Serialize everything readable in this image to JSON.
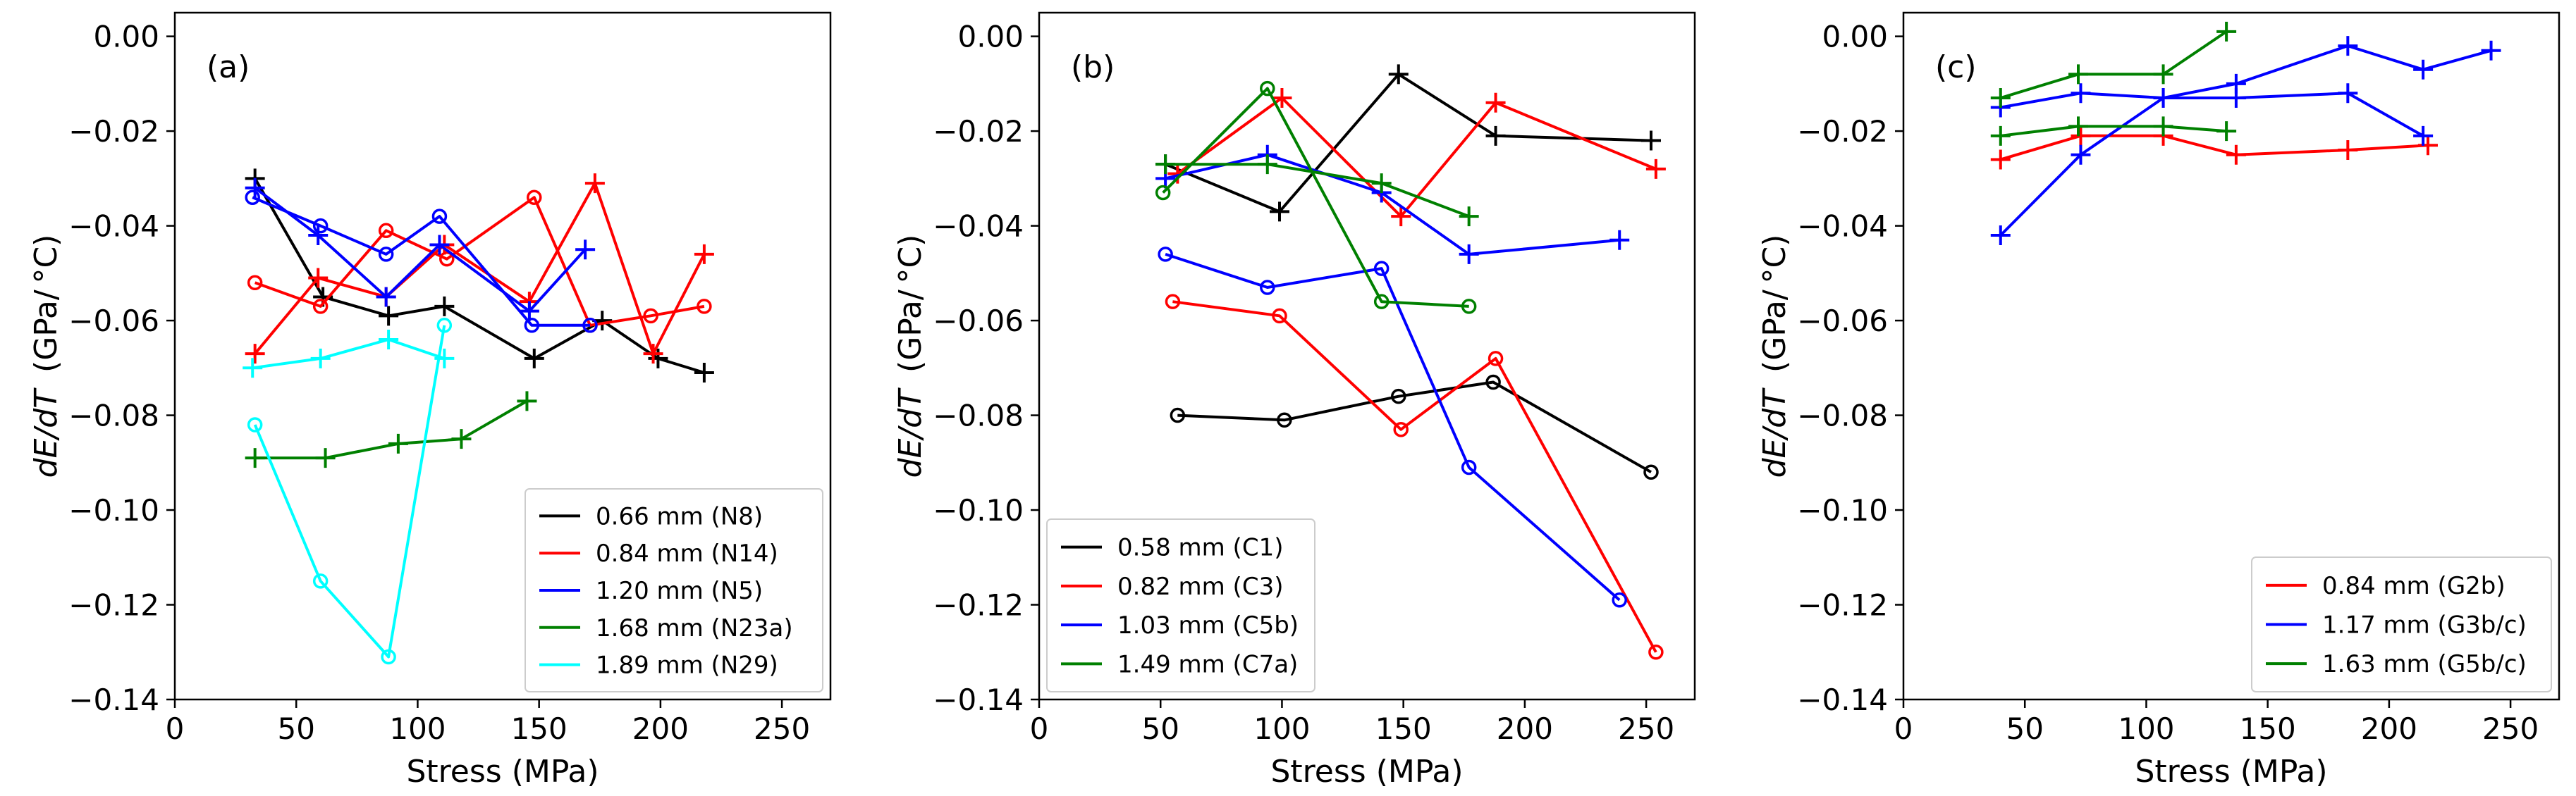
{
  "chart_data": [
    {
      "type": "line",
      "panel_label": "(a)",
      "xlabel": "Stress (MPa)",
      "ylabel_italic": "dE/dT",
      "ylabel_unit": "(GPa/ °C)",
      "xlim": [
        0,
        270
      ],
      "ylim": [
        -0.14,
        0.005
      ],
      "xticks": [
        0,
        50,
        100,
        150,
        200,
        250
      ],
      "yticks": [
        -0.14,
        -0.12,
        -0.1,
        -0.08,
        -0.06,
        -0.04,
        -0.02,
        0.0
      ],
      "ytick_labels": [
        "−0.14",
        "−0.12",
        "−0.10",
        "−0.08",
        "−0.06",
        "−0.04",
        "−0.02",
        "0.00"
      ],
      "legend_position": "bottom-right",
      "series": [
        {
          "name": "0.66 mm (N8)",
          "color": "#000000",
          "lines": [
            {
              "marker": "+",
              "x": [
                33,
                61,
                88,
                111,
                148,
                176,
                199,
                218
              ],
              "y": [
                -0.03,
                -0.055,
                -0.059,
                -0.057,
                -0.068,
                -0.06,
                -0.068,
                -0.071
              ]
            }
          ]
        },
        {
          "name": "0.84 mm (N14)",
          "color": "#ff0000",
          "lines": [
            {
              "marker": "+",
              "x": [
                33,
                59,
                87,
                111,
                146,
                173,
                197,
                218
              ],
              "y": [
                -0.067,
                -0.051,
                -0.055,
                -0.044,
                -0.056,
                -0.031,
                -0.067,
                -0.046
              ]
            },
            {
              "marker": "o",
              "x": [
                33,
                60,
                87,
                112,
                148,
                171,
                196,
                218
              ],
              "y": [
                -0.052,
                -0.057,
                -0.041,
                -0.047,
                -0.034,
                -0.061,
                -0.059,
                -0.057
              ]
            }
          ]
        },
        {
          "name": "1.20 mm (N5)",
          "color": "#0000ff",
          "lines": [
            {
              "marker": "+",
              "x": [
                33,
                59,
                87,
                109,
                146,
                169
              ],
              "y": [
                -0.032,
                -0.042,
                -0.055,
                -0.044,
                -0.058,
                -0.045
              ]
            },
            {
              "marker": "o",
              "x": [
                32,
                60,
                87,
                109,
                147,
                171
              ],
              "y": [
                -0.034,
                -0.04,
                -0.046,
                -0.038,
                -0.061,
                -0.061
              ]
            }
          ]
        },
        {
          "name": "1.68 mm (N23a)",
          "color": "#008000",
          "lines": [
            {
              "marker": "+",
              "x": [
                33,
                62,
                92,
                118,
                145
              ],
              "y": [
                -0.089,
                -0.089,
                -0.086,
                -0.085,
                -0.077
              ]
            }
          ]
        },
        {
          "name": "1.89 mm (N29)",
          "color": "#00ffff",
          "lines": [
            {
              "marker": "+",
              "x": [
                32,
                60,
                88,
                111
              ],
              "y": [
                -0.07,
                -0.068,
                -0.064,
                -0.068
              ]
            },
            {
              "marker": "o",
              "x": [
                33,
                60,
                88,
                111
              ],
              "y": [
                -0.082,
                -0.115,
                -0.131,
                -0.061
              ]
            }
          ]
        }
      ]
    },
    {
      "type": "line",
      "panel_label": "(b)",
      "xlabel": "Stress (MPa)",
      "ylabel_italic": "dE/dT",
      "ylabel_unit": "(GPa/ °C)",
      "xlim": [
        0,
        270
      ],
      "ylim": [
        -0.14,
        0.005
      ],
      "xticks": [
        0,
        50,
        100,
        150,
        200,
        250
      ],
      "yticks": [
        -0.14,
        -0.12,
        -0.1,
        -0.08,
        -0.06,
        -0.04,
        -0.02,
        0.0
      ],
      "ytick_labels": [
        "−0.14",
        "−0.12",
        "−0.10",
        "−0.08",
        "−0.06",
        "−0.04",
        "−0.02",
        "0.00"
      ],
      "legend_position": "bottom-left",
      "series": [
        {
          "name": "0.58 mm (C1)",
          "color": "#000000",
          "lines": [
            {
              "marker": "+",
              "x": [
                52,
                99,
                148,
                188,
                252
              ],
              "y": [
                -0.027,
                -0.037,
                -0.008,
                -0.021,
                -0.022
              ]
            },
            {
              "marker": "o",
              "x": [
                57,
                101,
                148,
                187,
                252
              ],
              "y": [
                -0.08,
                -0.081,
                -0.076,
                -0.073,
                -0.092
              ]
            }
          ]
        },
        {
          "name": "0.82 mm (C3)",
          "color": "#ff0000",
          "lines": [
            {
              "marker": "+",
              "x": [
                57,
                100,
                149,
                188,
                254
              ],
              "y": [
                -0.029,
                -0.013,
                -0.038,
                -0.014,
                -0.028
              ]
            },
            {
              "marker": "o",
              "x": [
                55,
                99,
                149,
                188,
                254
              ],
              "y": [
                -0.056,
                -0.059,
                -0.083,
                -0.068,
                -0.13
              ]
            }
          ]
        },
        {
          "name": "1.03 mm (C5b)",
          "color": "#0000ff",
          "lines": [
            {
              "marker": "+",
              "x": [
                52,
                94,
                141,
                177,
                239
              ],
              "y": [
                -0.03,
                -0.025,
                -0.033,
                -0.046,
                -0.043
              ]
            },
            {
              "marker": "o",
              "x": [
                52,
                94,
                141,
                177,
                239
              ],
              "y": [
                -0.046,
                -0.053,
                -0.049,
                -0.091,
                -0.119
              ]
            }
          ]
        },
        {
          "name": "1.49 mm (C7a)",
          "color": "#008000",
          "lines": [
            {
              "marker": "+",
              "x": [
                52,
                94,
                141,
                177
              ],
              "y": [
                -0.027,
                -0.027,
                -0.031,
                -0.038
              ]
            },
            {
              "marker": "o",
              "x": [
                51,
                94,
                141,
                177
              ],
              "y": [
                -0.033,
                -0.011,
                -0.056,
                -0.057
              ]
            }
          ]
        }
      ]
    },
    {
      "type": "line",
      "panel_label": "(c)",
      "xlabel": "Stress (MPa)",
      "ylabel_italic": "dE/dT",
      "ylabel_unit": "(GPa/ °C)",
      "xlim": [
        0,
        270
      ],
      "ylim": [
        -0.14,
        0.005
      ],
      "xticks": [
        0,
        50,
        100,
        150,
        200,
        250
      ],
      "yticks": [
        -0.14,
        -0.12,
        -0.1,
        -0.08,
        -0.06,
        -0.04,
        -0.02,
        0.0
      ],
      "ytick_labels": [
        "−0.14",
        "−0.12",
        "−0.10",
        "−0.08",
        "−0.06",
        "−0.04",
        "−0.02",
        "0.00"
      ],
      "legend_position": "bottom-right",
      "series": [
        {
          "name": "0.84 mm (G2b)",
          "color": "#ff0000",
          "lines": [
            {
              "marker": "+",
              "x": [
                40,
                73,
                107,
                137,
                183,
                216
              ],
              "y": [
                -0.026,
                -0.021,
                -0.021,
                -0.025,
                -0.024,
                -0.023
              ]
            }
          ]
        },
        {
          "name": "1.17 mm (G3b/c)",
          "color": "#0000ff",
          "lines": [
            {
              "marker": "+",
              "x": [
                40,
                73,
                107,
                137,
                183,
                214
              ],
              "y": [
                -0.015,
                -0.012,
                -0.013,
                -0.013,
                -0.012,
                -0.021
              ]
            },
            {
              "marker": "+",
              "x": [
                40,
                73,
                107,
                137,
                183,
                214,
                242
              ],
              "y": [
                -0.042,
                -0.025,
                -0.013,
                -0.01,
                -0.002,
                -0.007,
                -0.003
              ]
            }
          ]
        },
        {
          "name": "1.63 mm (G5b/c)",
          "color": "#008000",
          "lines": [
            {
              "marker": "+",
              "x": [
                40,
                72,
                107,
                133
              ],
              "y": [
                -0.013,
                -0.008,
                -0.008,
                0.001
              ]
            },
            {
              "marker": "+",
              "x": [
                40,
                72,
                107,
                133
              ],
              "y": [
                -0.021,
                -0.019,
                -0.019,
                -0.02
              ]
            }
          ]
        }
      ]
    }
  ]
}
